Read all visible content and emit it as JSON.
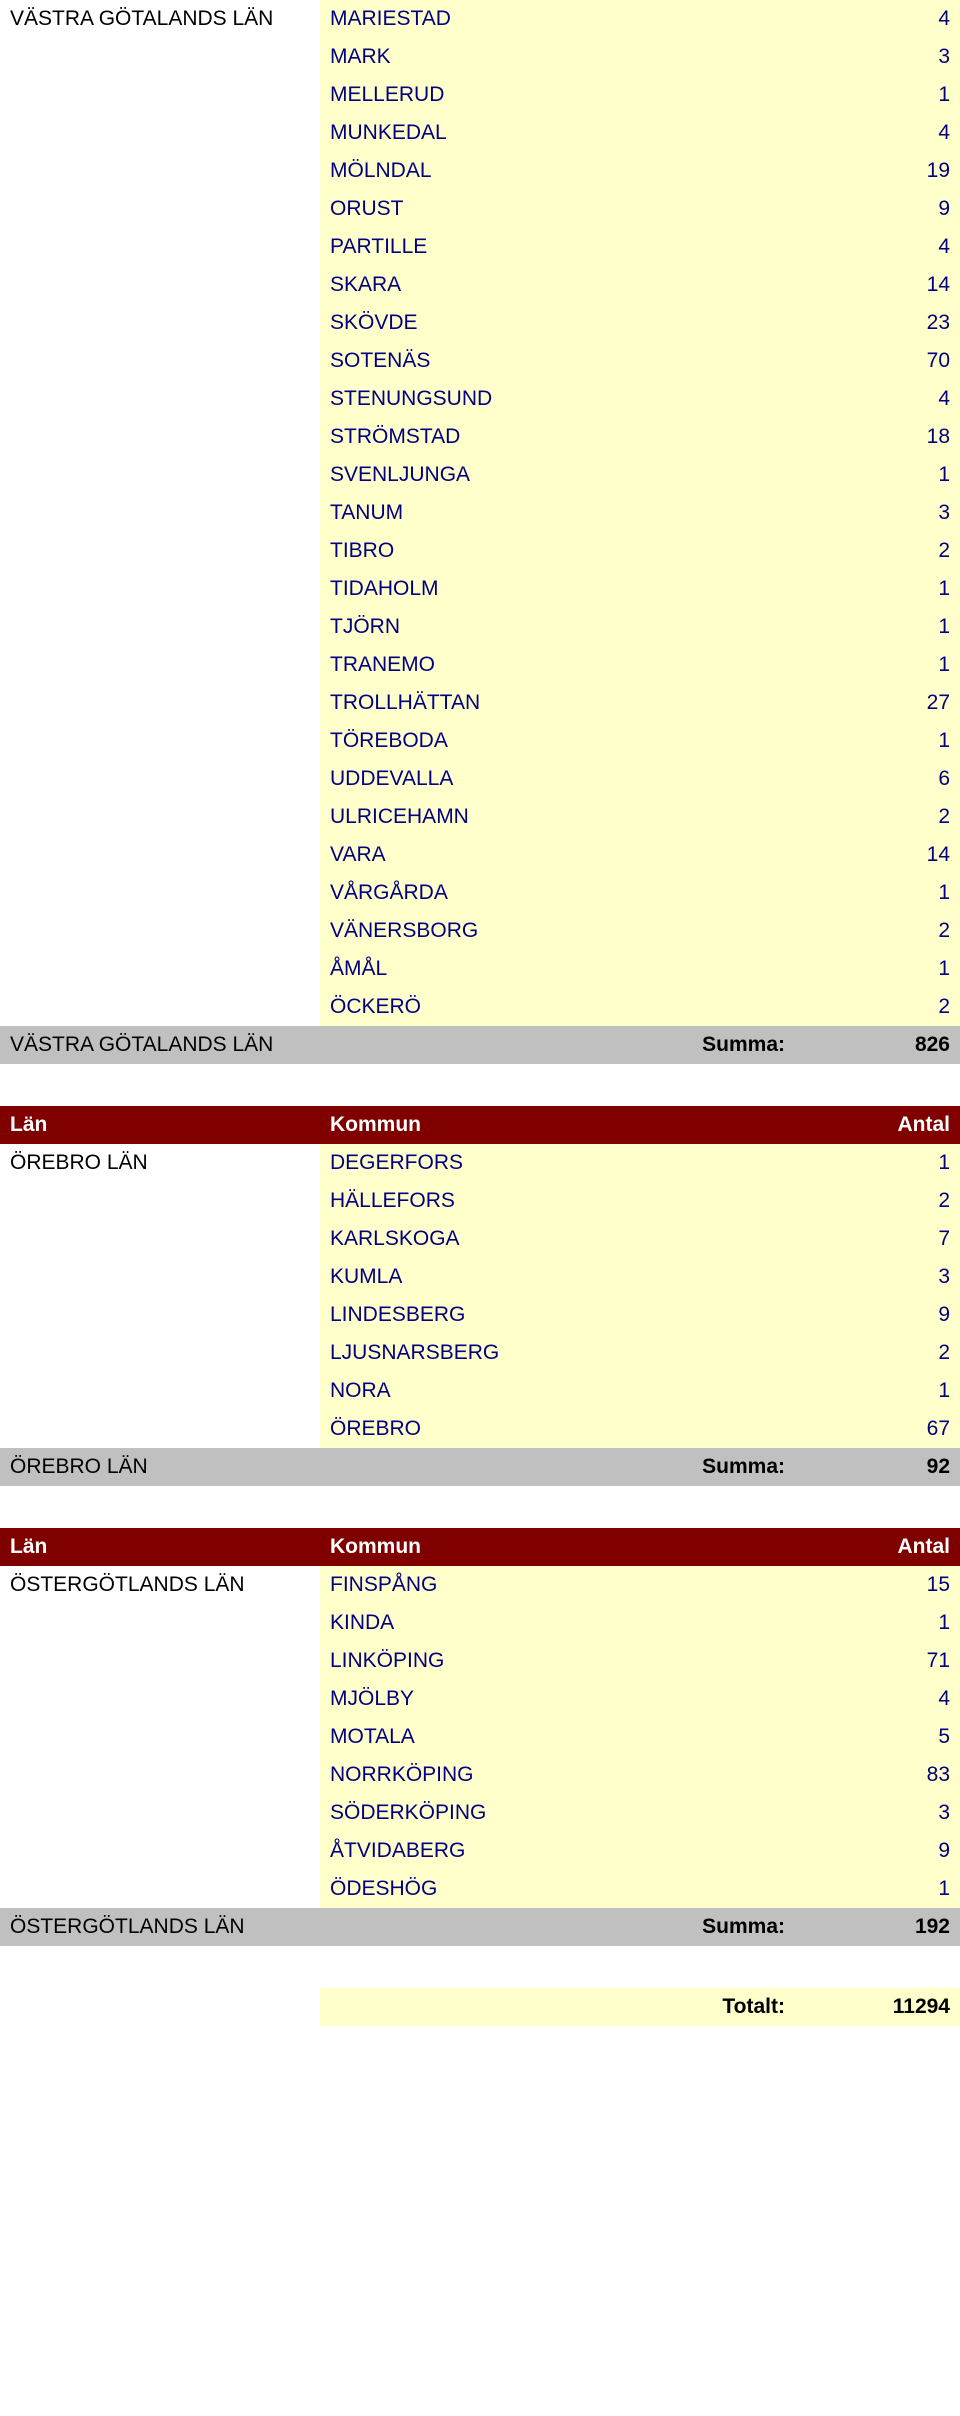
{
  "header": {
    "lan": "Län",
    "kommun": "Kommun",
    "antal": "Antal"
  },
  "groups": [
    {
      "lan": "VÄSTRA GÖTALANDS LÄN",
      "continuation": true,
      "rows": [
        {
          "kommun": "MARIESTAD",
          "antal": 4
        },
        {
          "kommun": "MARK",
          "antal": 3
        },
        {
          "kommun": "MELLERUD",
          "antal": 1
        },
        {
          "kommun": "MUNKEDAL",
          "antal": 4
        },
        {
          "kommun": "MÖLNDAL",
          "antal": 19
        },
        {
          "kommun": "ORUST",
          "antal": 9
        },
        {
          "kommun": "PARTILLE",
          "antal": 4
        },
        {
          "kommun": "SKARA",
          "antal": 14
        },
        {
          "kommun": "SKÖVDE",
          "antal": 23
        },
        {
          "kommun": "SOTENÄS",
          "antal": 70
        },
        {
          "kommun": "STENUNGSUND",
          "antal": 4
        },
        {
          "kommun": "STRÖMSTAD",
          "antal": 18
        },
        {
          "kommun": "SVENLJUNGA",
          "antal": 1
        },
        {
          "kommun": "TANUM",
          "antal": 3
        },
        {
          "kommun": "TIBRO",
          "antal": 2
        },
        {
          "kommun": "TIDAHOLM",
          "antal": 1
        },
        {
          "kommun": "TJÖRN",
          "antal": 1
        },
        {
          "kommun": "TRANEMO",
          "antal": 1
        },
        {
          "kommun": "TROLLHÄTTAN",
          "antal": 27
        },
        {
          "kommun": "TÖREBODA",
          "antal": 1
        },
        {
          "kommun": "UDDEVALLA",
          "antal": 6
        },
        {
          "kommun": "ULRICEHAMN",
          "antal": 2
        },
        {
          "kommun": "VARA",
          "antal": 14
        },
        {
          "kommun": "VÅRGÅRDA",
          "antal": 1
        },
        {
          "kommun": "VÄNERSBORG",
          "antal": 2
        },
        {
          "kommun": "ÅMÅL",
          "antal": 1
        },
        {
          "kommun": "ÖCKERÖ",
          "antal": 2
        }
      ],
      "summary": {
        "lan": "VÄSTRA GÖTALANDS LÄN",
        "label": "Summa:",
        "antal": 826
      }
    },
    {
      "lan": "ÖREBRO LÄN",
      "continuation": false,
      "rows": [
        {
          "kommun": "DEGERFORS",
          "antal": 1
        },
        {
          "kommun": "HÄLLEFORS",
          "antal": 2
        },
        {
          "kommun": "KARLSKOGA",
          "antal": 7
        },
        {
          "kommun": "KUMLA",
          "antal": 3
        },
        {
          "kommun": "LINDESBERG",
          "antal": 9
        },
        {
          "kommun": "LJUSNARSBERG",
          "antal": 2
        },
        {
          "kommun": "NORA",
          "antal": 1
        },
        {
          "kommun": "ÖREBRO",
          "antal": 67
        }
      ],
      "summary": {
        "lan": "ÖREBRO LÄN",
        "label": "Summa:",
        "antal": 92
      }
    },
    {
      "lan": "ÖSTERGÖTLANDS LÄN",
      "continuation": false,
      "rows": [
        {
          "kommun": "FINSPÅNG",
          "antal": 15
        },
        {
          "kommun": "KINDA",
          "antal": 1
        },
        {
          "kommun": "LINKÖPING",
          "antal": 71
        },
        {
          "kommun": "MJÖLBY",
          "antal": 4
        },
        {
          "kommun": "MOTALA",
          "antal": 5
        },
        {
          "kommun": "NORRKÖPING",
          "antal": 83
        },
        {
          "kommun": "SÖDERKÖPING",
          "antal": 3
        },
        {
          "kommun": "ÅTVIDABERG",
          "antal": 9
        },
        {
          "kommun": "ÖDESHÖG",
          "antal": 1
        }
      ],
      "summary": {
        "lan": "ÖSTERGÖTLANDS LÄN",
        "label": "Summa:",
        "antal": 192
      }
    }
  ],
  "total": {
    "label": "Totalt:",
    "antal": 11294
  }
}
